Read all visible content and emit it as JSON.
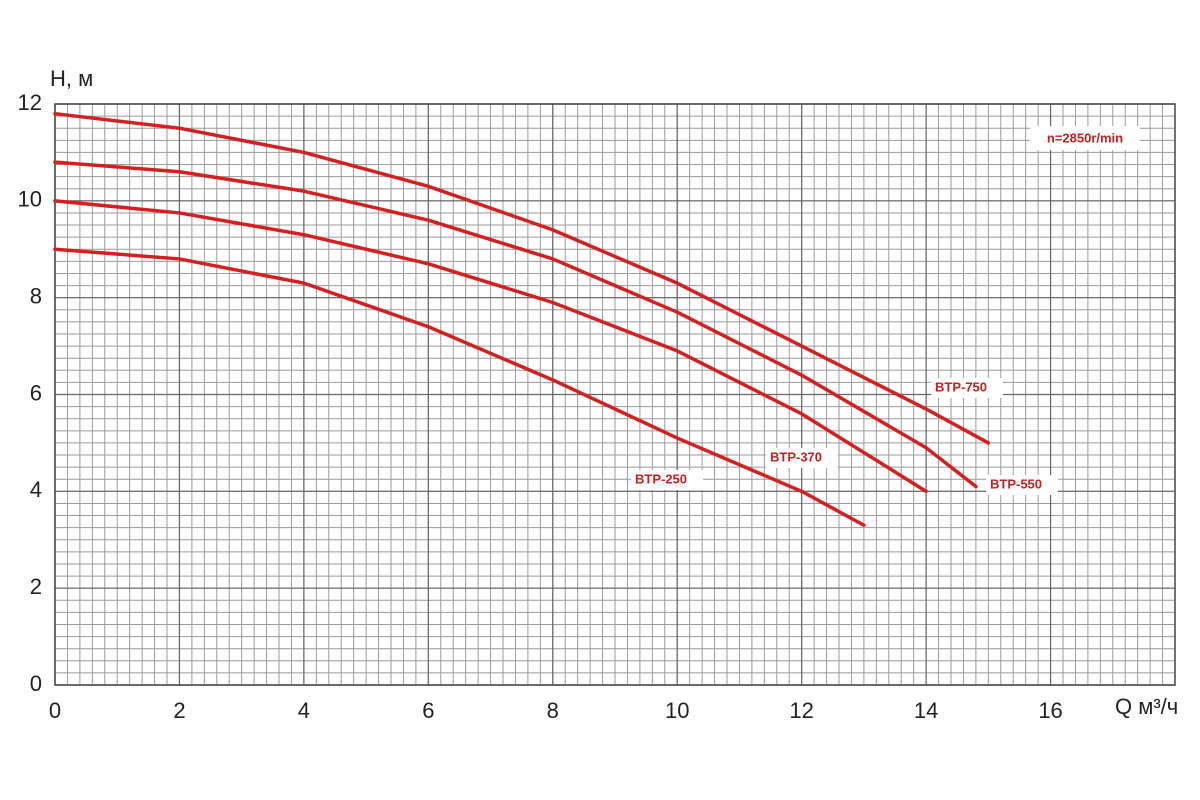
{
  "chart_data": {
    "type": "line",
    "y_label": "H, м",
    "x_label": "Q м³/ч",
    "annotation": "n=2850r/min",
    "xlim": [
      0,
      18
    ],
    "ylim": [
      0,
      12
    ],
    "xticks": [
      0,
      2,
      4,
      6,
      8,
      10,
      12,
      14,
      16
    ],
    "yticks": [
      0,
      2,
      4,
      6,
      8,
      10,
      12
    ],
    "grid": true,
    "minor_grid": {
      "x": 0.2,
      "y": 0.25
    },
    "series": [
      {
        "name": "BTP-750",
        "color": "#d42020",
        "x": [
          0,
          2,
          4,
          6,
          8,
          10,
          12,
          14,
          15
        ],
        "values": [
          11.8,
          11.5,
          11.0,
          10.3,
          9.4,
          8.3,
          7.0,
          5.7,
          5.0
        ]
      },
      {
        "name": "BTP-550",
        "color": "#d42020",
        "x": [
          0,
          2,
          4,
          6,
          8,
          10,
          12,
          14,
          14.8
        ],
        "values": [
          10.8,
          10.6,
          10.2,
          9.6,
          8.8,
          7.7,
          6.4,
          4.9,
          4.1
        ]
      },
      {
        "name": "BTP-370",
        "color": "#d42020",
        "x": [
          0,
          2,
          4,
          6,
          8,
          10,
          12,
          14
        ],
        "values": [
          10.0,
          9.75,
          9.3,
          8.7,
          7.9,
          6.9,
          5.6,
          4.0
        ]
      },
      {
        "name": "BTP-250",
        "color": "#d42020",
        "x": [
          0,
          2,
          4,
          6,
          8,
          10,
          12,
          13
        ],
        "values": [
          9.0,
          8.8,
          8.3,
          7.4,
          6.3,
          5.1,
          4.0,
          3.3
        ]
      }
    ]
  }
}
